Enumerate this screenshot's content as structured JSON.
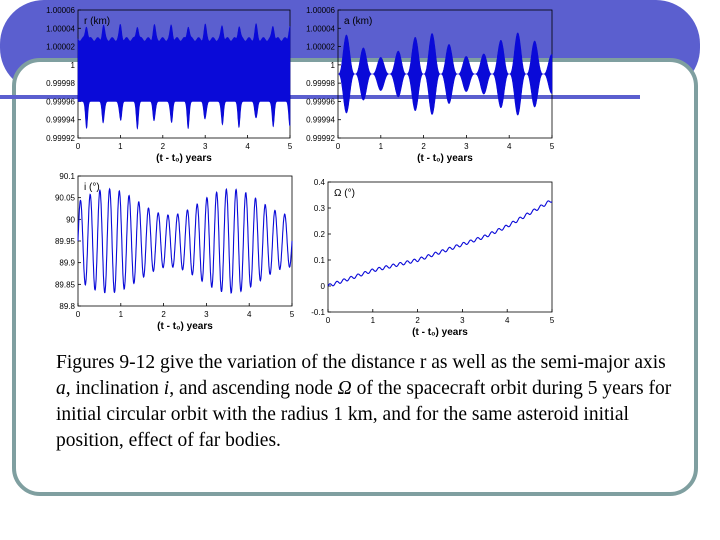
{
  "caption": {
    "p1": "Figures 9-12 give the variation of the distance r as well as the semi-major axis ",
    "a": "a",
    "p2": ", inclination ",
    "i": "i",
    "p3": ", and ascending node ",
    "omega": "Ω",
    "p4": " of the spacecraft orbit during 5 years for initial circular orbit with the radius 1 km, and for the same asteroid initial position, effect of far bodies."
  },
  "colors": {
    "accent": "#5b5fcf",
    "frame": "#7f9fa0",
    "series": "#0a0ad8"
  },
  "chart_data": [
    {
      "type": "area",
      "panel_label": "r (km)",
      "xlabel": "(t - t₀) years",
      "xlim": [
        0,
        5
      ],
      "ylim": [
        0.99992,
        1.00006
      ],
      "xticks": [
        "0",
        "1",
        "2",
        "3",
        "4",
        "5"
      ],
      "yticks": [
        "0.99992",
        "0.99994",
        "0.99996",
        "0.99998",
        "1",
        "1.00002",
        "1.00004",
        "1.00006"
      ],
      "series": [
        {
          "upper": 1.00003,
          "lower": 0.99996,
          "spike_upper": 1.000045,
          "spike_lower": 0.99993,
          "spike_period": 0.4
        }
      ]
    },
    {
      "type": "area",
      "panel_label": "a (km)",
      "xlabel": "(t - t₀) years",
      "xlim": [
        0,
        5
      ],
      "ylim": [
        0.99992,
        1.00006
      ],
      "xticks": [
        "0",
        "1",
        "2",
        "3",
        "4",
        "5"
      ],
      "yticks": [
        "0.99992",
        "0.99994",
        "0.99996",
        "0.99998",
        "1",
        "1.00002",
        "1.00004",
        "1.00006"
      ],
      "series": [
        {
          "center": 0.99999,
          "max_amplitude": 4.5e-05,
          "burst_period": 0.4
        }
      ]
    },
    {
      "type": "line",
      "panel_label": "i (°)",
      "xlabel": "(t - t₀) years",
      "xlim": [
        0,
        5
      ],
      "ylim": [
        89.8,
        90.1
      ],
      "xticks": [
        "0",
        "1",
        "2",
        "3",
        "4",
        "5"
      ],
      "yticks": [
        "89.8",
        "89.85",
        "89.9",
        "89.95",
        "90",
        "90.05",
        "90.1"
      ],
      "series": [
        {
          "center": 89.95,
          "amplitude": 0.12,
          "oscillations": 22
        }
      ]
    },
    {
      "type": "line",
      "panel_label": "Ω (°)",
      "xlabel": "(t - t₀) years",
      "xlim": [
        0,
        5
      ],
      "ylim": [
        -0.1,
        0.4
      ],
      "xticks": [
        "0",
        "1",
        "2",
        "3",
        "4",
        "5"
      ],
      "yticks": [
        "-0.1",
        "0",
        "0.1",
        "0.2",
        "0.3",
        "0.4"
      ],
      "series": [
        {
          "x": [
            0,
            0.5,
            1,
            1.5,
            2,
            2.5,
            3,
            3.5,
            4,
            4.5,
            5
          ],
          "y": [
            0,
            0.03,
            0.06,
            0.08,
            0.1,
            0.13,
            0.16,
            0.19,
            0.23,
            0.28,
            0.33
          ]
        }
      ]
    }
  ]
}
